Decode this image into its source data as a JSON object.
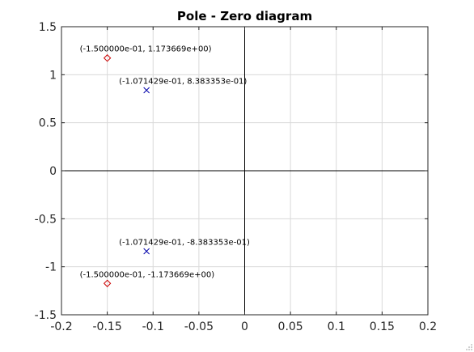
{
  "chart_data": {
    "type": "scatter",
    "title": "Pole - Zero diagram",
    "xlabel": "",
    "ylabel": "",
    "xlim": [
      -0.2,
      0.2
    ],
    "ylim": [
      -1.5,
      1.5
    ],
    "x_ticks": [
      -0.2,
      -0.15,
      -0.1,
      -0.05,
      0,
      0.05,
      0.1,
      0.15,
      0.2
    ],
    "x_tick_labels": [
      "-0.2",
      "-0.15",
      "-0.1",
      "-0.05",
      "0",
      "0.05",
      "0.1",
      "0.15",
      "0.2"
    ],
    "y_ticks": [
      1.5,
      1,
      0.5,
      0,
      -0.5,
      -1,
      -1.5
    ],
    "y_tick_labels": [
      "1.5",
      "1",
      "0.5",
      "0",
      "-0.5",
      "-1",
      "-1.5"
    ],
    "grid": true,
    "series": [
      {
        "marker": "diamond",
        "color": "#cc0000",
        "points": [
          {
            "x": -0.15,
            "y": 1.173669,
            "label": "(-1.500000e-01, 1.173669e+00)"
          },
          {
            "x": -0.15,
            "y": -1.173669,
            "label": "(-1.500000e-01, -1.173669e+00)"
          }
        ]
      },
      {
        "marker": "x",
        "color": "#0000aa",
        "points": [
          {
            "x": -0.1071429,
            "y": 0.8383353,
            "label": "(-1.071429e-01, 8.383353e-01)"
          },
          {
            "x": -0.1071429,
            "y": -0.8383353,
            "label": "(-1.071429e-01, -8.383353e-01)"
          }
        ]
      }
    ]
  },
  "colors": {
    "grid": "#d9d9d9",
    "axis_lines": "#000000",
    "frame": "#262626"
  }
}
